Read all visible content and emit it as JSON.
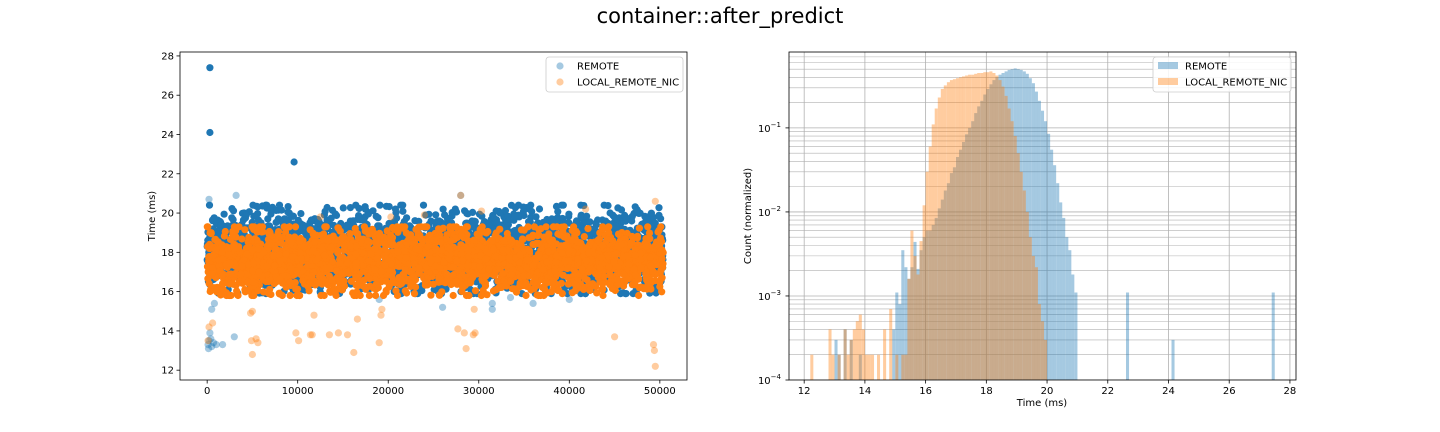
{
  "figure": {
    "suptitle": "container::after_predict"
  },
  "colors": {
    "remote": "#1f77b4",
    "local": "#ff7f0e",
    "grid": "#b0b0b0"
  },
  "chart_data": [
    {
      "type": "scatter",
      "xlabel": "",
      "ylabel": "Time (ms)",
      "xlim": [
        -3000,
        53000
      ],
      "ylim": [
        11.5,
        28.2
      ],
      "xticks": [
        0,
        10000,
        20000,
        30000,
        40000,
        50000
      ],
      "yticks": [
        12,
        14,
        16,
        18,
        20,
        22,
        24,
        26,
        28
      ],
      "legend": {
        "placement": "top-right",
        "entries": [
          "REMOTE",
          "LOCAL_REMOTE_NIC"
        ]
      },
      "series": [
        {
          "name": "REMOTE",
          "color": "#1f77b4",
          "x_range": [
            0,
            50400
          ],
          "band": [
            15.9,
            20.4
          ],
          "outliers_high": [
            [
              300,
              27.4
            ],
            [
              300,
              24.1
            ],
            [
              9600,
              22.6
            ],
            [
              200,
              20.7
            ],
            [
              3200,
              20.9
            ],
            [
              28000,
              20.9
            ]
          ],
          "outliers_low": [
            [
              100,
              13.3
            ],
            [
              200,
              13.5
            ],
            [
              300,
              13.9
            ],
            [
              400,
              13.6
            ],
            [
              150,
              13.1
            ],
            [
              500,
              13.2
            ],
            [
              700,
              13.4
            ],
            [
              1000,
              13.3
            ],
            [
              1700,
              13.3
            ],
            [
              3000,
              13.7
            ],
            [
              500,
              15.1
            ],
            [
              800,
              15.4
            ],
            [
              26000,
              15.2
            ],
            [
              31500,
              15.4
            ],
            [
              31500,
              15.1
            ],
            [
              33500,
              15.7
            ],
            [
              40000,
              15.6
            ],
            [
              36000,
              15.4
            ],
            [
              19000,
              15.6
            ]
          ]
        },
        {
          "name": "LOCAL_REMOTE_NIC",
          "color": "#ff7f0e",
          "x_range": [
            0,
            50400
          ],
          "band": [
            15.8,
            19.3
          ],
          "outliers_high": [
            [
              28000,
              20.9
            ],
            [
              49500,
              20.6
            ],
            [
              41800,
              20.2
            ],
            [
              30300,
              20.1
            ],
            [
              24000,
              19.9
            ],
            [
              12500,
              19.8
            ],
            [
              20300,
              19.8
            ]
          ],
          "outliers_low": [
            [
              600,
              14.4
            ],
            [
              200,
              14.2
            ],
            [
              100,
              13.5
            ],
            [
              5400,
              13.6
            ],
            [
              5600,
              13.4
            ],
            [
              5000,
              12.8
            ],
            [
              4900,
              13.5
            ],
            [
              9800,
              13.9
            ],
            [
              10100,
              13.5
            ],
            [
              11400,
              13.8
            ],
            [
              11600,
              13.8
            ],
            [
              11800,
              14.8
            ],
            [
              13500,
              13.8
            ],
            [
              14500,
              13.9
            ],
            [
              15500,
              13.8
            ],
            [
              16200,
              12.9
            ],
            [
              16600,
              14.6
            ],
            [
              19200,
              14.8
            ],
            [
              19000,
              13.4
            ],
            [
              27700,
              14.1
            ],
            [
              28400,
              13.9
            ],
            [
              28600,
              13.1
            ],
            [
              29400,
              13.8
            ],
            [
              29600,
              13.9
            ],
            [
              29500,
              15.1
            ],
            [
              45000,
              13.7
            ],
            [
              49300,
              13.3
            ],
            [
              49400,
              13.0
            ],
            [
              49500,
              12.2
            ],
            [
              4800,
              14.9
            ],
            [
              5000,
              15.0
            ],
            [
              19300,
              15.1
            ]
          ]
        }
      ]
    },
    {
      "type": "bar",
      "subtype": "histogram",
      "xlabel": "Time (ms)",
      "ylabel": "Count (normalized)",
      "xlim": [
        11.5,
        28.2
      ],
      "ylim_log": [
        0.0001,
        0.8
      ],
      "yscale": "log",
      "xticks": [
        12,
        14,
        16,
        18,
        20,
        22,
        24,
        26,
        28
      ],
      "yticks": [
        {
          "value": 0.0001,
          "base": "10",
          "exp": "−4"
        },
        {
          "value": 0.001,
          "base": "10",
          "exp": "−3"
        },
        {
          "value": 0.01,
          "base": "10",
          "exp": "−2"
        },
        {
          "value": 0.1,
          "base": "10",
          "exp": "−1"
        }
      ],
      "grid": true,
      "legend": {
        "placement": "top-right",
        "entries": [
          "REMOTE",
          "LOCAL_REMOTE_NIC"
        ]
      },
      "bin_width": 0.1,
      "series": [
        {
          "name": "REMOTE",
          "color": "#1f77b4",
          "bins": [
            [
              13.0,
              0.0003
            ],
            [
              13.1,
              0.0002
            ],
            [
              13.3,
              0.0004
            ],
            [
              13.5,
              0.0003
            ],
            [
              13.8,
              0.0002
            ],
            [
              14.9,
              0.0004
            ],
            [
              15.0,
              0.0011
            ],
            [
              15.1,
              0.0008
            ],
            [
              15.2,
              0.0035
            ],
            [
              15.3,
              0.0022
            ],
            [
              15.4,
              0.0016
            ],
            [
              15.5,
              0.0022
            ],
            [
              15.6,
              0.0044
            ],
            [
              15.7,
              0.0021
            ],
            [
              15.8,
              0.0035
            ],
            [
              15.9,
              0.005
            ],
            [
              16.0,
              0.006
            ],
            [
              16.1,
              0.006
            ],
            [
              16.2,
              0.007
            ],
            [
              16.3,
              0.0085
            ],
            [
              16.4,
              0.011
            ],
            [
              16.5,
              0.014
            ],
            [
              16.6,
              0.018
            ],
            [
              16.7,
              0.022
            ],
            [
              16.8,
              0.029
            ],
            [
              16.9,
              0.034
            ],
            [
              17.0,
              0.045
            ],
            [
              17.1,
              0.055
            ],
            [
              17.2,
              0.068
            ],
            [
              17.3,
              0.084
            ],
            [
              17.4,
              0.1
            ],
            [
              17.5,
              0.12
            ],
            [
              17.6,
              0.15
            ],
            [
              17.7,
              0.18
            ],
            [
              17.8,
              0.21
            ],
            [
              17.9,
              0.25
            ],
            [
              18.0,
              0.29
            ],
            [
              18.1,
              0.33
            ],
            [
              18.2,
              0.37
            ],
            [
              18.3,
              0.4
            ],
            [
              18.4,
              0.43
            ],
            [
              18.5,
              0.45
            ],
            [
              18.6,
              0.47
            ],
            [
              18.7,
              0.49
            ],
            [
              18.8,
              0.5
            ],
            [
              18.9,
              0.51
            ],
            [
              19.0,
              0.5
            ],
            [
              19.1,
              0.49
            ],
            [
              19.2,
              0.47
            ],
            [
              19.3,
              0.44
            ],
            [
              19.4,
              0.39
            ],
            [
              19.5,
              0.34
            ],
            [
              19.6,
              0.27
            ],
            [
              19.7,
              0.21
            ],
            [
              19.8,
              0.16
            ],
            [
              19.9,
              0.12
            ],
            [
              20.0,
              0.085
            ],
            [
              20.1,
              0.055
            ],
            [
              20.2,
              0.036
            ],
            [
              20.3,
              0.022
            ],
            [
              20.4,
              0.013
            ],
            [
              20.5,
              0.0085
            ],
            [
              20.6,
              0.005
            ],
            [
              20.7,
              0.0035
            ],
            [
              20.8,
              0.0018
            ],
            [
              20.9,
              0.0011
            ],
            [
              22.6,
              0.0011
            ],
            [
              24.1,
              0.0003
            ],
            [
              27.4,
              0.0011
            ]
          ]
        },
        {
          "name": "LOCAL_REMOTE_NIC",
          "color": "#ff7f0e",
          "bins": [
            [
              12.2,
              0.0002
            ],
            [
              12.8,
              0.0004
            ],
            [
              12.9,
              0.0002
            ],
            [
              13.1,
              0.0002
            ],
            [
              13.3,
              0.0004
            ],
            [
              13.4,
              0.0002
            ],
            [
              13.5,
              0.0003
            ],
            [
              13.6,
              0.0004
            ],
            [
              13.7,
              0.0005
            ],
            [
              13.8,
              0.0006
            ],
            [
              13.9,
              0.0004
            ],
            [
              14.0,
              0.0002
            ],
            [
              14.1,
              0.0002
            ],
            [
              14.2,
              0.0002
            ],
            [
              14.4,
              0.0002
            ],
            [
              14.6,
              0.0004
            ],
            [
              14.8,
              0.0007
            ],
            [
              15.0,
              0.0002
            ],
            [
              15.2,
              0.0002
            ],
            [
              15.3,
              0.0002
            ],
            [
              15.4,
              0.0016
            ],
            [
              15.5,
              0.006
            ],
            [
              15.6,
              0.003
            ],
            [
              15.7,
              0.0018
            ],
            [
              15.8,
              0.0045
            ],
            [
              15.9,
              0.012
            ],
            [
              16.0,
              0.03
            ],
            [
              16.1,
              0.06
            ],
            [
              16.2,
              0.11
            ],
            [
              16.3,
              0.17
            ],
            [
              16.4,
              0.23
            ],
            [
              16.5,
              0.29
            ],
            [
              16.6,
              0.32
            ],
            [
              16.7,
              0.35
            ],
            [
              16.8,
              0.37
            ],
            [
              16.9,
              0.38
            ],
            [
              17.0,
              0.39
            ],
            [
              17.1,
              0.4
            ],
            [
              17.2,
              0.41
            ],
            [
              17.3,
              0.42
            ],
            [
              17.4,
              0.43
            ],
            [
              17.5,
              0.43
            ],
            [
              17.6,
              0.44
            ],
            [
              17.7,
              0.45
            ],
            [
              17.8,
              0.45
            ],
            [
              17.9,
              0.46
            ],
            [
              18.0,
              0.46
            ],
            [
              18.1,
              0.47
            ],
            [
              18.2,
              0.45
            ],
            [
              18.3,
              0.42
            ],
            [
              18.4,
              0.37
            ],
            [
              18.5,
              0.31
            ],
            [
              18.6,
              0.24
            ],
            [
              18.7,
              0.17
            ],
            [
              18.8,
              0.12
            ],
            [
              18.9,
              0.08
            ],
            [
              19.0,
              0.05
            ],
            [
              19.1,
              0.03
            ],
            [
              19.2,
              0.018
            ],
            [
              19.3,
              0.01
            ],
            [
              19.4,
              0.005
            ],
            [
              19.5,
              0.003
            ],
            [
              19.6,
              0.0022
            ],
            [
              19.7,
              0.0008
            ],
            [
              19.8,
              0.0005
            ],
            [
              19.9,
              0.0003
            ]
          ]
        }
      ]
    }
  ]
}
